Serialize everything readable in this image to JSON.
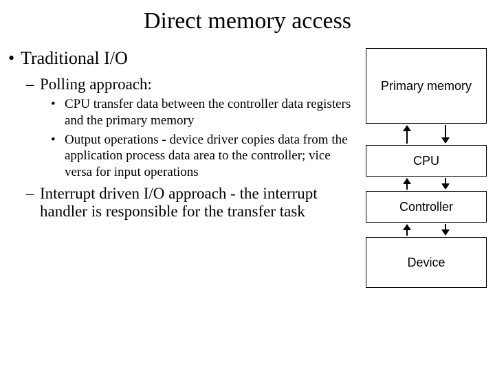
{
  "title": "Direct memory access",
  "bullets": {
    "l1": "Traditional I/O",
    "l2a": "Polling approach:",
    "l3a": "CPU transfer data between the controller data registers and the primary memory",
    "l3b": "Output operations - device driver copies data from the application process data area to the controller; vice versa for input operations",
    "l2b": "Interrupt driven I/O approach - the interrupt handler is responsible for the transfer task"
  },
  "diagram": {
    "primary": "Primary memory",
    "cpu": "CPU",
    "controller": "Controller",
    "device": "Device",
    "box_border_color": "#000000",
    "box_bg_color": "#ffffff",
    "font_family": "Arial",
    "font_size_pt": 14
  },
  "colors": {
    "background": "#ffffff",
    "text": "#000000"
  }
}
